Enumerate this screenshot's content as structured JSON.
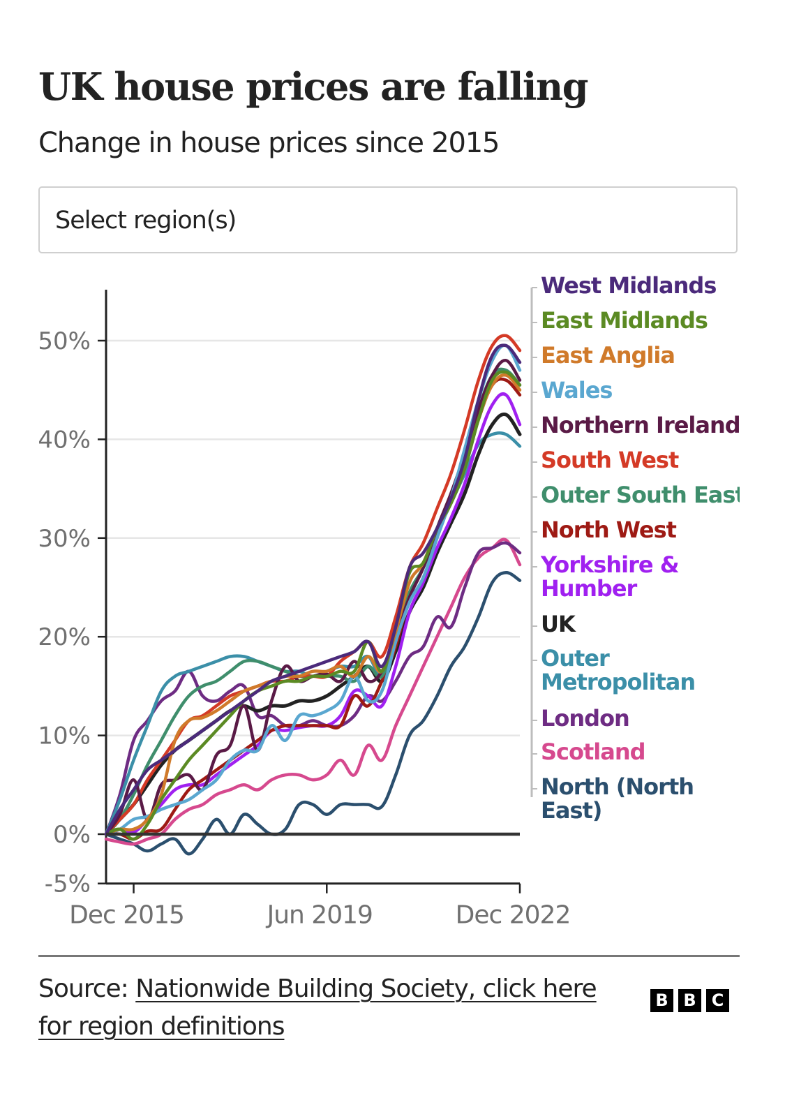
{
  "header": {
    "title": "UK house prices are falling",
    "subtitle": "Change in house prices since 2015"
  },
  "region_select": {
    "placeholder": "Select region(s)"
  },
  "footer": {
    "source_prefix": "Source: ",
    "source_link": "Nationwide Building Society, click here for region definitions",
    "brand_letters": [
      "B",
      "B",
      "C"
    ]
  },
  "chart_data": {
    "type": "line",
    "title": "UK house prices are falling",
    "subtitle": "Change in house prices since 2015",
    "xlabel": "",
    "ylabel": "",
    "x_start": "Jun 2015",
    "x_step": "quarter",
    "x_ticks": [
      {
        "label": "Dec 2015",
        "index": 2
      },
      {
        "label": "Jun 2019",
        "index": 16
      },
      {
        "label": "Dec 2022",
        "index": 30
      }
    ],
    "y_ticks": [
      {
        "label": "-5%",
        "value": -5
      },
      {
        "label": "0%",
        "value": 0
      },
      {
        "label": "10%",
        "value": 10
      },
      {
        "label": "20%",
        "value": 20
      },
      {
        "label": "30%",
        "value": 30
      },
      {
        "label": "40%",
        "value": 40
      },
      {
        "label": "50%",
        "value": 50
      }
    ],
    "ylim": [
      -5,
      55
    ],
    "grid": true,
    "legend_placement": "right",
    "series": [
      {
        "name": "West Midlands",
        "color": "#4b2a7b",
        "values": [
          0,
          2.5,
          4.5,
          6.5,
          7.5,
          8.5,
          9.5,
          10.5,
          11.5,
          12.5,
          13.5,
          14.5,
          15.5,
          16,
          16.5,
          17,
          17.5,
          18,
          18.5,
          19.5,
          17,
          21,
          27,
          28.5,
          31,
          34,
          38,
          44,
          48.5,
          49.5,
          47.8
        ]
      },
      {
        "name": "East Midlands",
        "color": "#5b8a23",
        "values": [
          0,
          0.5,
          -0.5,
          1,
          3.5,
          5.5,
          7.5,
          9,
          10.5,
          12,
          13.5,
          14.5,
          15,
          15.5,
          15.5,
          16,
          16,
          16.5,
          16.5,
          19.5,
          16.5,
          21,
          26.5,
          27.5,
          31,
          33.5,
          37,
          42,
          46,
          46.8,
          45.5
        ]
      },
      {
        "name": "East Anglia",
        "color": "#d07a2a",
        "values": [
          0,
          0.5,
          0.5,
          1.5,
          4,
          9.5,
          11.5,
          11.8,
          12.5,
          13.5,
          14.5,
          15,
          15.5,
          16,
          16,
          16.5,
          16.5,
          17,
          16,
          18,
          16.5,
          20.5,
          25.5,
          27.5,
          31,
          33.5,
          37,
          42,
          45.5,
          46.5,
          45
        ]
      },
      {
        "name": "Wales",
        "color": "#5aa7d0",
        "values": [
          0,
          0.5,
          1.5,
          1.8,
          2.5,
          3,
          3.5,
          4.5,
          5.5,
          7.5,
          8.5,
          8.5,
          11,
          9.5,
          12,
          12,
          12.5,
          13.5,
          16,
          13.5,
          14.5,
          19.5,
          23.5,
          26,
          30,
          34,
          39,
          44,
          48,
          49.5,
          47
        ]
      },
      {
        "name": "Northern Ireland",
        "color": "#5a1a46",
        "values": [
          0,
          2,
          5.5,
          1.5,
          5,
          5.5,
          6,
          4.5,
          8,
          9,
          13,
          8.5,
          13.5,
          17,
          15.5,
          16,
          16.2,
          15.5,
          17.5,
          15.5,
          16.5,
          20,
          24,
          27,
          31,
          34.5,
          38.5,
          43,
          46.5,
          48,
          46
        ]
      },
      {
        "name": "South West",
        "color": "#d43a26",
        "values": [
          0,
          1.5,
          3,
          5.5,
          7.5,
          9.5,
          11.5,
          12,
          13,
          14,
          14.5,
          15,
          15.5,
          15.5,
          16,
          16,
          16,
          17.5,
          18.5,
          19.5,
          18,
          22,
          27,
          29.5,
          33,
          36.5,
          41,
          46,
          49.5,
          50.5,
          49
        ]
      },
      {
        "name": "Outer South East",
        "color": "#3f8e6c",
        "values": [
          0,
          1.5,
          4,
          7,
          9.5,
          12,
          14,
          15,
          15.5,
          16.5,
          17.5,
          17.5,
          17,
          16.5,
          16,
          16,
          16,
          16,
          15.5,
          17,
          16,
          20,
          24.5,
          27,
          30.5,
          34,
          38,
          43,
          46.5,
          47,
          45.5
        ]
      },
      {
        "name": "North West",
        "color": "#9e1a14",
        "values": [
          0,
          0,
          -0.5,
          0.3,
          0.5,
          2.5,
          4.5,
          5.5,
          6.5,
          7.5,
          8.5,
          9.5,
          10.5,
          11,
          11,
          11,
          11,
          11,
          14,
          13,
          15.5,
          19,
          24,
          27,
          30.5,
          34,
          37.5,
          42,
          45.5,
          46,
          44.5
        ]
      },
      {
        "name": "Yorkshire & Humber",
        "color": "#a020f0",
        "values": [
          0,
          0.5,
          0.2,
          1.5,
          3,
          4.5,
          5,
          5,
          6,
          7,
          8,
          9,
          10.5,
          10.5,
          10.8,
          11,
          11,
          12,
          14.5,
          14,
          13,
          17,
          22.5,
          25.5,
          29,
          32,
          35.5,
          40,
          43.5,
          44.5,
          41.5
        ]
      },
      {
        "name": "UK",
        "color": "#222222",
        "values": [
          0,
          1.5,
          3,
          5,
          7,
          8.5,
          9.5,
          10.5,
          11.5,
          12.5,
          13,
          12.5,
          13,
          13,
          13.5,
          13.5,
          14,
          15,
          16,
          17,
          15.5,
          18.5,
          22.5,
          25,
          28.5,
          31.5,
          34.5,
          38.5,
          41.5,
          42.5,
          40.5
        ]
      },
      {
        "name": "Outer Metropolitan",
        "color": "#3b8fa8",
        "values": [
          0,
          3.5,
          7.5,
          11,
          14.5,
          16,
          16.5,
          17,
          17.5,
          18,
          18,
          17.5,
          17,
          16.5,
          16.5,
          16,
          16.5,
          17,
          17,
          18,
          16,
          19.5,
          24,
          27,
          30.5,
          33.5,
          36.5,
          39.5,
          40.5,
          40.5,
          39.3
        ]
      },
      {
        "name": "London",
        "color": "#6e2c83",
        "values": [
          0,
          4,
          9.5,
          11.5,
          13.5,
          14.5,
          16.5,
          14,
          13.5,
          14.5,
          15,
          12,
          12,
          11,
          11,
          11.5,
          11,
          11,
          12,
          14,
          13.5,
          15.5,
          18,
          19,
          22,
          21,
          25,
          28.5,
          29,
          29.5,
          28.5
        ]
      },
      {
        "name": "Scotland",
        "color": "#d6498e",
        "values": [
          -0.5,
          -0.8,
          -1,
          -0.5,
          0,
          1.5,
          2.5,
          3,
          4,
          4.5,
          5,
          4.5,
          5.5,
          6,
          6,
          5.5,
          6,
          7.5,
          6,
          9,
          7.5,
          11,
          14,
          17,
          20,
          23,
          26,
          28,
          29,
          29.8,
          27.3
        ]
      },
      {
        "name": "North (North East)",
        "color": "#2b4f6e",
        "values": [
          0,
          -0.5,
          -1,
          -1.7,
          -1,
          -0.5,
          -2,
          -0.5,
          1.5,
          0,
          2,
          1,
          0,
          0.5,
          3,
          3,
          2,
          3,
          3,
          3,
          2.8,
          6,
          10,
          11.5,
          14,
          17,
          19,
          22,
          25.5,
          26.5,
          25.7
        ]
      }
    ]
  }
}
